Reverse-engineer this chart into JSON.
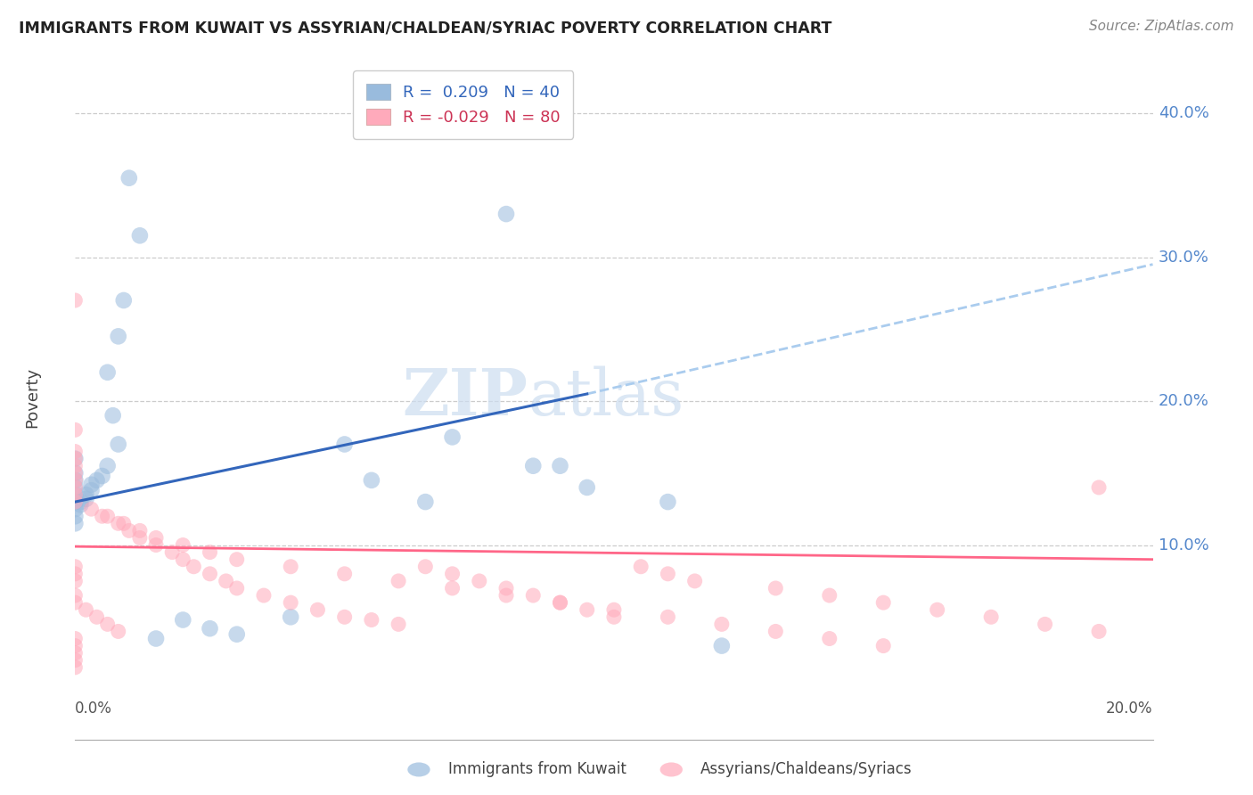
{
  "title": "IMMIGRANTS FROM KUWAIT VS ASSYRIAN/CHALDEAN/SYRIAC POVERTY CORRELATION CHART",
  "source": "Source: ZipAtlas.com",
  "ylabel": "Poverty",
  "ytick_labels": [
    "40.0%",
    "30.0%",
    "20.0%",
    "10.0%"
  ],
  "ytick_values": [
    0.4,
    0.3,
    0.2,
    0.1
  ],
  "xmin": 0.0,
  "xmax": 0.2,
  "ymin": -0.035,
  "ymax": 0.44,
  "legend_blue_R": "0.209",
  "legend_blue_N": "40",
  "legend_pink_R": "-0.029",
  "legend_pink_N": "80",
  "color_blue": "#99BBDD",
  "color_pink": "#FFAABB",
  "color_blue_line": "#3366BB",
  "color_pink_line": "#FF6688",
  "color_dashed": "#AACCEE",
  "watermark_zip": "ZIP",
  "watermark_atlas": "atlas",
  "blue_line_x": [
    0.0,
    0.095
  ],
  "blue_line_y": [
    0.13,
    0.205
  ],
  "dashed_line_x": [
    0.095,
    0.2
  ],
  "dashed_line_y": [
    0.205,
    0.295
  ],
  "pink_line_x": [
    0.0,
    0.2
  ],
  "pink_line_y": [
    0.099,
    0.09
  ],
  "blue_scatter_x": [
    0.01,
    0.012,
    0.009,
    0.008,
    0.006,
    0.007,
    0.008,
    0.006,
    0.005,
    0.004,
    0.003,
    0.003,
    0.002,
    0.002,
    0.001,
    0.001,
    0.0,
    0.0,
    0.0,
    0.0,
    0.0,
    0.0,
    0.0,
    0.0,
    0.0,
    0.05,
    0.07,
    0.08,
    0.09,
    0.095,
    0.11,
    0.015,
    0.02,
    0.025,
    0.03,
    0.085,
    0.055,
    0.065,
    0.04,
    0.12
  ],
  "blue_scatter_y": [
    0.355,
    0.315,
    0.27,
    0.245,
    0.22,
    0.19,
    0.17,
    0.155,
    0.148,
    0.145,
    0.142,
    0.138,
    0.135,
    0.132,
    0.13,
    0.128,
    0.16,
    0.15,
    0.145,
    0.14,
    0.135,
    0.13,
    0.125,
    0.12,
    0.115,
    0.17,
    0.175,
    0.33,
    0.155,
    0.14,
    0.13,
    0.035,
    0.048,
    0.042,
    0.038,
    0.155,
    0.145,
    0.13,
    0.05,
    0.03
  ],
  "pink_scatter_x": [
    0.0,
    0.0,
    0.0,
    0.0,
    0.0,
    0.0,
    0.0,
    0.0,
    0.0,
    0.0,
    0.005,
    0.008,
    0.01,
    0.012,
    0.015,
    0.018,
    0.02,
    0.022,
    0.025,
    0.028,
    0.03,
    0.035,
    0.04,
    0.045,
    0.05,
    0.055,
    0.06,
    0.065,
    0.07,
    0.075,
    0.08,
    0.085,
    0.09,
    0.095,
    0.1,
    0.105,
    0.11,
    0.115,
    0.13,
    0.14,
    0.15,
    0.16,
    0.17,
    0.18,
    0.19,
    0.0,
    0.0,
    0.0,
    0.0,
    0.0,
    0.003,
    0.006,
    0.009,
    0.012,
    0.015,
    0.02,
    0.025,
    0.03,
    0.04,
    0.05,
    0.06,
    0.07,
    0.08,
    0.09,
    0.1,
    0.11,
    0.12,
    0.13,
    0.14,
    0.15,
    0.0,
    0.0,
    0.0,
    0.0,
    0.0,
    0.002,
    0.004,
    0.006,
    0.008,
    0.19
  ],
  "pink_scatter_y": [
    0.27,
    0.18,
    0.165,
    0.16,
    0.155,
    0.15,
    0.145,
    0.14,
    0.135,
    0.13,
    0.12,
    0.115,
    0.11,
    0.105,
    0.1,
    0.095,
    0.09,
    0.085,
    0.08,
    0.075,
    0.07,
    0.065,
    0.06,
    0.055,
    0.05,
    0.048,
    0.045,
    0.085,
    0.08,
    0.075,
    0.07,
    0.065,
    0.06,
    0.055,
    0.05,
    0.085,
    0.08,
    0.075,
    0.07,
    0.065,
    0.06,
    0.055,
    0.05,
    0.045,
    0.04,
    0.035,
    0.03,
    0.025,
    0.02,
    0.015,
    0.125,
    0.12,
    0.115,
    0.11,
    0.105,
    0.1,
    0.095,
    0.09,
    0.085,
    0.08,
    0.075,
    0.07,
    0.065,
    0.06,
    0.055,
    0.05,
    0.045,
    0.04,
    0.035,
    0.03,
    0.085,
    0.08,
    0.075,
    0.065,
    0.06,
    0.055,
    0.05,
    0.045,
    0.04,
    0.14
  ]
}
